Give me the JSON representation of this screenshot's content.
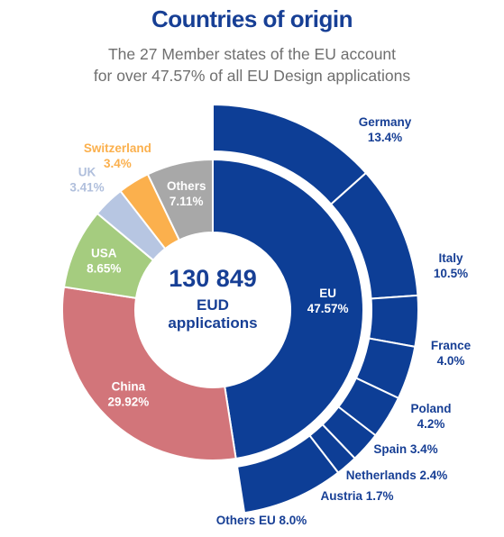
{
  "chart_data": {
    "type": "pie",
    "title": "Countries of origin",
    "subtitle": [
      "The 27 Member states of the EU account",
      "for over 47.57% of all EU Design applications"
    ],
    "center": {
      "value": "130 849",
      "line1": "EUD",
      "line2": "applications"
    },
    "inner_ring": [
      {
        "name": "EU",
        "value": 47.57,
        "label": "47.57%",
        "color": "#0d3e96"
      },
      {
        "name": "China",
        "value": 29.92,
        "label": "29.92%",
        "color": "#d2757a"
      },
      {
        "name": "USA",
        "value": 8.65,
        "label": "8.65%",
        "color": "#a5cc7f"
      },
      {
        "name": "UK",
        "value": 3.41,
        "label": "3.41%",
        "color": "#b7c6e2"
      },
      {
        "name": "Switzerland",
        "value": 3.4,
        "label": "3.4%",
        "color": "#fbb04d"
      },
      {
        "name": "Others",
        "value": 7.11,
        "label": "7.11%",
        "color": "#a8a8a8"
      }
    ],
    "outer_ring": [
      {
        "name": "Germany",
        "value": 13.4,
        "label": "13.4%"
      },
      {
        "name": "Italy",
        "value": 10.5,
        "label": "10.5%"
      },
      {
        "name": "France",
        "value": 4.0,
        "label": "4.0%"
      },
      {
        "name": "Poland",
        "value": 4.2,
        "label": "4.2%"
      },
      {
        "name": "Spain",
        "value": 3.4,
        "label": "3.4%"
      },
      {
        "name": "Netherlands",
        "value": 2.4,
        "label": "2.4%"
      },
      {
        "name": "Austria",
        "value": 1.7,
        "label": "1.7%"
      },
      {
        "name": "Others EU",
        "value": 8.0,
        "label": "8.0%"
      }
    ],
    "outer_color": "#0d3e96",
    "text_dark": "#173f95"
  }
}
